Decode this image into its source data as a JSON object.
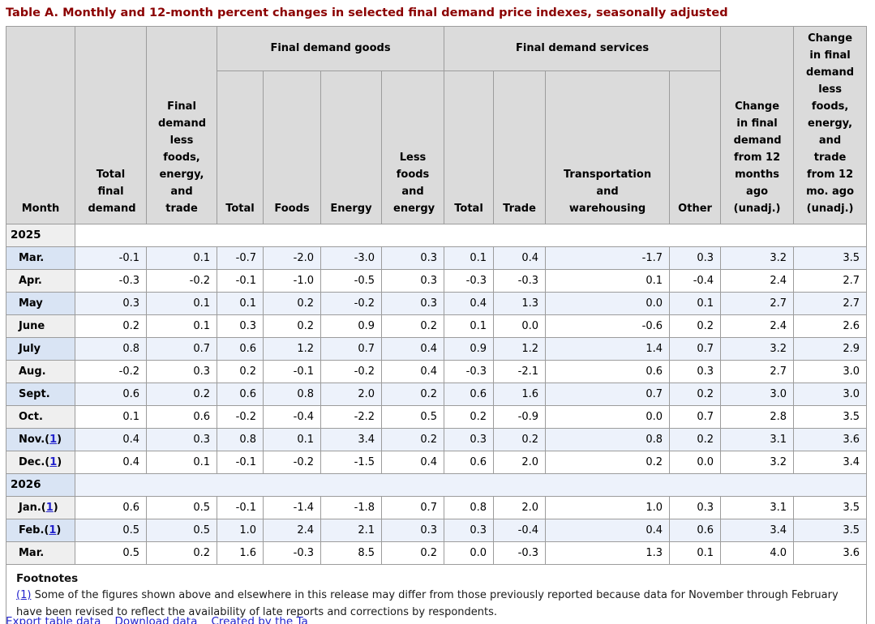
{
  "title": "Table A. Monthly and 12-month percent changes in selected final demand price indexes, seasonally adjusted",
  "chart_data": {
    "type": "table",
    "title": "Table A. Monthly and 12-month percent changes in selected final demand price indexes, seasonally adjusted",
    "columns": {
      "month": "Month",
      "total_final_demand": "Total final demand",
      "less_fet": "Final demand less foods, energy, and trade",
      "goods_group": "Final demand goods",
      "services_group": "Final demand services",
      "goods_total": "Total",
      "foods": "Foods",
      "energy": "Energy",
      "goods_less": "Less foods and energy",
      "services_total": "Total",
      "trade": "Trade",
      "transp": "Transportation and warehousing",
      "other": "Other",
      "chg_12mo": "Change in final demand from 12 months ago (unadj.)",
      "chg_12mo_less_fet": "Change in final demand less foods, energy, and trade from 12 mo. ago (unadj.)"
    },
    "rows": [
      {
        "type": "year",
        "label": "2025",
        "footnote": null,
        "values": []
      },
      {
        "type": "month",
        "label": "Mar.",
        "footnote": null,
        "values": [
          "-0.1",
          "0.1",
          "-0.7",
          "-2.0",
          "-3.0",
          "0.3",
          "0.1",
          "0.4",
          "-1.7",
          "0.3",
          "3.2",
          "3.5"
        ]
      },
      {
        "type": "month",
        "label": "Apr.",
        "footnote": null,
        "values": [
          "-0.3",
          "-0.2",
          "-0.1",
          "-1.0",
          "-0.5",
          "0.3",
          "-0.3",
          "-0.3",
          "0.1",
          "-0.4",
          "2.4",
          "2.7"
        ]
      },
      {
        "type": "month",
        "label": "May",
        "footnote": null,
        "values": [
          "0.3",
          "0.1",
          "0.1",
          "0.2",
          "-0.2",
          "0.3",
          "0.4",
          "1.3",
          "0.0",
          "0.1",
          "2.7",
          "2.7"
        ]
      },
      {
        "type": "month",
        "label": "June",
        "footnote": null,
        "values": [
          "0.2",
          "0.1",
          "0.3",
          "0.2",
          "0.9",
          "0.2",
          "0.1",
          "0.0",
          "-0.6",
          "0.2",
          "2.4",
          "2.6"
        ]
      },
      {
        "type": "month",
        "label": "July",
        "footnote": null,
        "values": [
          "0.8",
          "0.7",
          "0.6",
          "1.2",
          "0.7",
          "0.4",
          "0.9",
          "1.2",
          "1.4",
          "0.7",
          "3.2",
          "2.9"
        ]
      },
      {
        "type": "month",
        "label": "Aug.",
        "footnote": null,
        "values": [
          "-0.2",
          "0.3",
          "0.2",
          "-0.1",
          "-0.2",
          "0.4",
          "-0.3",
          "-2.1",
          "0.6",
          "0.3",
          "2.7",
          "3.0"
        ]
      },
      {
        "type": "month",
        "label": "Sept.",
        "footnote": null,
        "values": [
          "0.6",
          "0.2",
          "0.6",
          "0.8",
          "2.0",
          "0.2",
          "0.6",
          "1.6",
          "0.7",
          "0.2",
          "3.0",
          "3.0"
        ]
      },
      {
        "type": "month",
        "label": "Oct.",
        "footnote": null,
        "values": [
          "0.1",
          "0.6",
          "-0.2",
          "-0.4",
          "-2.2",
          "0.5",
          "0.2",
          "-0.9",
          "0.0",
          "0.7",
          "2.8",
          "3.5"
        ]
      },
      {
        "type": "month",
        "label": "Nov.",
        "footnote": "1",
        "values": [
          "0.4",
          "0.3",
          "0.8",
          "0.1",
          "3.4",
          "0.2",
          "0.3",
          "0.2",
          "0.8",
          "0.2",
          "3.1",
          "3.6"
        ]
      },
      {
        "type": "month",
        "label": "Dec.",
        "footnote": "1",
        "values": [
          "0.4",
          "0.1",
          "-0.1",
          "-0.2",
          "-1.5",
          "0.4",
          "0.6",
          "2.0",
          "0.2",
          "0.0",
          "3.2",
          "3.4"
        ]
      },
      {
        "type": "year",
        "label": "2026",
        "footnote": null,
        "values": []
      },
      {
        "type": "month",
        "label": "Jan.",
        "footnote": "1",
        "values": [
          "0.6",
          "0.5",
          "-0.1",
          "-1.4",
          "-1.8",
          "0.7",
          "0.8",
          "2.0",
          "1.0",
          "0.3",
          "3.1",
          "3.5"
        ]
      },
      {
        "type": "month",
        "label": "Feb.",
        "footnote": "1",
        "values": [
          "0.5",
          "0.5",
          "1.0",
          "2.4",
          "2.1",
          "0.3",
          "0.3",
          "-0.4",
          "0.4",
          "0.6",
          "3.4",
          "3.5"
        ]
      },
      {
        "type": "month",
        "label": "Mar.",
        "footnote": null,
        "values": [
          "0.5",
          "0.2",
          "1.6",
          "-0.3",
          "8.5",
          "0.2",
          "0.0",
          "-0.3",
          "1.3",
          "0.1",
          "4.0",
          "3.6"
        ]
      }
    ]
  },
  "footnotes": {
    "heading": "Footnotes",
    "items": [
      {
        "ref": "(1)",
        "text": "Some of the figures shown above and elsewhere in this release may differ from those previously reported because data for November through February have been revised to reflect the availability of late reports and corrections by respondents."
      }
    ]
  },
  "footer": {
    "links_text": "Export table data    Download data    Created by the Ta"
  },
  "colors": {
    "title": "#8b0000",
    "header_bg": "#dbdbdb",
    "stripe_blue": "#edf2fb",
    "stub_blue": "#d9e4f4",
    "stub_gray": "#efefef",
    "link": "#2222cc",
    "border": "#9c9c9c"
  }
}
